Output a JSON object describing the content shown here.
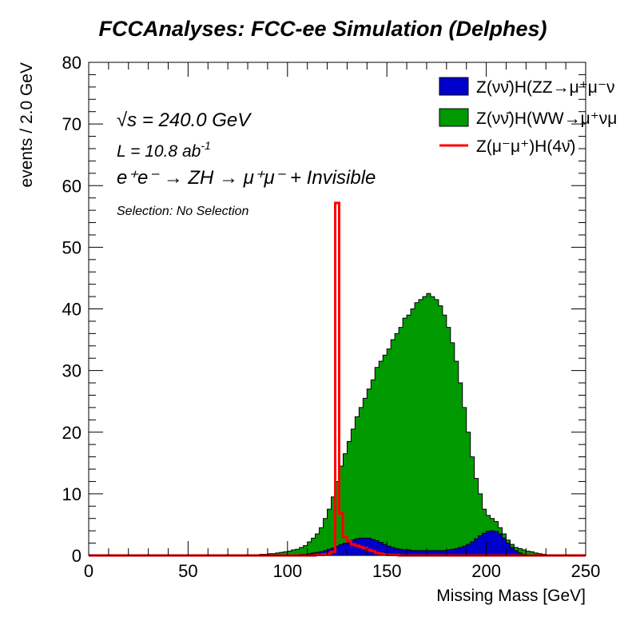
{
  "chart_data": {
    "type": "histogram",
    "title": "FCCAnalyses: FCC-ee Simulation (Delphes)",
    "xlabel": "Missing Mass [GeV]",
    "ylabel": "events / 2.0 GeV",
    "xlim": [
      0,
      250
    ],
    "ylim": [
      0,
      80
    ],
    "bin_width": 2.0,
    "x_ticks": [
      0,
      50,
      100,
      150,
      200,
      250
    ],
    "y_ticks": [
      0,
      10,
      20,
      30,
      40,
      50,
      60,
      70,
      80
    ],
    "annotations": {
      "sqrt_s_symbol": "√s",
      "sqrt_s": " = 240.0 GeV",
      "lumi": "L = 10.8 ab",
      "lumi_sup": "-1",
      "process": "e⁺e⁻ → ZH → μ⁺μ⁻ + Invisible",
      "selection": "Selection: No Selection"
    },
    "legend_placement": "top-right",
    "series": [
      {
        "name": "Z(νν̄)H(ZZ→μ⁺μ⁻ν",
        "style": "filled",
        "color": "#0000cc",
        "x": [
          84,
          86,
          88,
          90,
          92,
          94,
          96,
          98,
          100,
          102,
          104,
          106,
          108,
          110,
          112,
          114,
          116,
          118,
          120,
          122,
          124,
          126,
          128,
          130,
          132,
          134,
          136,
          138,
          140,
          142,
          144,
          146,
          148,
          150,
          152,
          154,
          156,
          158,
          160,
          162,
          164,
          166,
          168,
          170,
          172,
          174,
          176,
          178,
          180,
          182,
          184,
          186,
          188,
          190,
          192,
          194,
          196,
          198,
          200,
          202,
          204,
          206,
          208,
          210,
          212,
          214,
          216,
          218,
          220,
          222,
          224,
          226
        ],
        "values": [
          0,
          0,
          0,
          0,
          0,
          0,
          0,
          0,
          0.1,
          0.1,
          0.1,
          0.2,
          0.2,
          0.3,
          0.4,
          0.5,
          0.6,
          0.8,
          1,
          1.2,
          1.5,
          1.8,
          2.0,
          2.3,
          2.5,
          2.7,
          2.8,
          2.8,
          2.8,
          2.6,
          2.4,
          2.1,
          1.8,
          1.5,
          1.3,
          1.1,
          1.0,
          0.9,
          0.9,
          0.8,
          0.8,
          0.8,
          0.8,
          0.8,
          0.8,
          0.8,
          0.8,
          0.8,
          0.9,
          1.0,
          1.1,
          1.3,
          1.5,
          1.8,
          2.2,
          2.7,
          3.2,
          3.6,
          3.9,
          4.0,
          3.9,
          3.5,
          2.8,
          2.0,
          1.3,
          0.8,
          0.4,
          0.2,
          0.1,
          0.1,
          0,
          0
        ]
      },
      {
        "name": "Z(νν̄)H(WW→μ⁺νμ",
        "style": "filled",
        "color": "#009900",
        "x": [
          84,
          86,
          88,
          90,
          92,
          94,
          96,
          98,
          100,
          102,
          104,
          106,
          108,
          110,
          112,
          114,
          116,
          118,
          120,
          122,
          124,
          126,
          128,
          130,
          132,
          134,
          136,
          138,
          140,
          142,
          144,
          146,
          148,
          150,
          152,
          154,
          156,
          158,
          160,
          162,
          164,
          166,
          168,
          170,
          172,
          174,
          176,
          178,
          180,
          182,
          184,
          186,
          188,
          190,
          192,
          194,
          196,
          198,
          200,
          202,
          204,
          206,
          208,
          210,
          212,
          214,
          216,
          218,
          220,
          222,
          224,
          226,
          228,
          230,
          232,
          234
        ],
        "values": [
          0.1,
          0.2,
          0.2,
          0.3,
          0.3,
          0.4,
          0.5,
          0.6,
          0.7,
          0.9,
          1.0,
          1.3,
          1.6,
          2.2,
          2.8,
          3.5,
          4.5,
          6.0,
          7.5,
          9.5,
          12.0,
          14.5,
          16.5,
          18.5,
          20.5,
          22.5,
          24.0,
          25.5,
          27.0,
          28.5,
          30.5,
          31.5,
          32.5,
          33.5,
          35.0,
          36.0,
          37.0,
          38.5,
          39.0,
          40.0,
          41.0,
          41.5,
          42.0,
          42.5,
          42.0,
          41.5,
          40.5,
          39.0,
          37.0,
          34.5,
          31.5,
          28.0,
          24.0,
          20.0,
          16.0,
          12.5,
          10.0,
          7.5,
          6.5,
          6.0,
          5.5,
          4.5,
          3.5,
          2.5,
          1.8,
          1.3,
          1.1,
          0.9,
          0.7,
          0.6,
          0.4,
          0.3,
          0.2,
          0.1,
          0.1,
          0
        ]
      },
      {
        "name": "Z(μ⁻μ⁺)H(4ν̄)",
        "style": "line",
        "color": "#ff0000",
        "x": [
          96,
          98,
          100,
          102,
          104,
          106,
          108,
          110,
          112,
          114,
          116,
          118,
          120,
          122,
          124,
          126,
          128,
          130,
          132,
          134,
          136,
          138,
          140,
          142,
          144,
          146,
          148,
          150,
          152,
          154,
          156,
          158
        ],
        "values": [
          0,
          0,
          0,
          0,
          0,
          0,
          0,
          0,
          0,
          0.1,
          0.1,
          0.2,
          0.3,
          0.6,
          57.2,
          6.8,
          3.0,
          2.3,
          1.8,
          1.6,
          1.4,
          1.2,
          0.9,
          0.7,
          0.4,
          0.3,
          0.2,
          0.1,
          0.1,
          0.1,
          0,
          0
        ]
      }
    ]
  }
}
